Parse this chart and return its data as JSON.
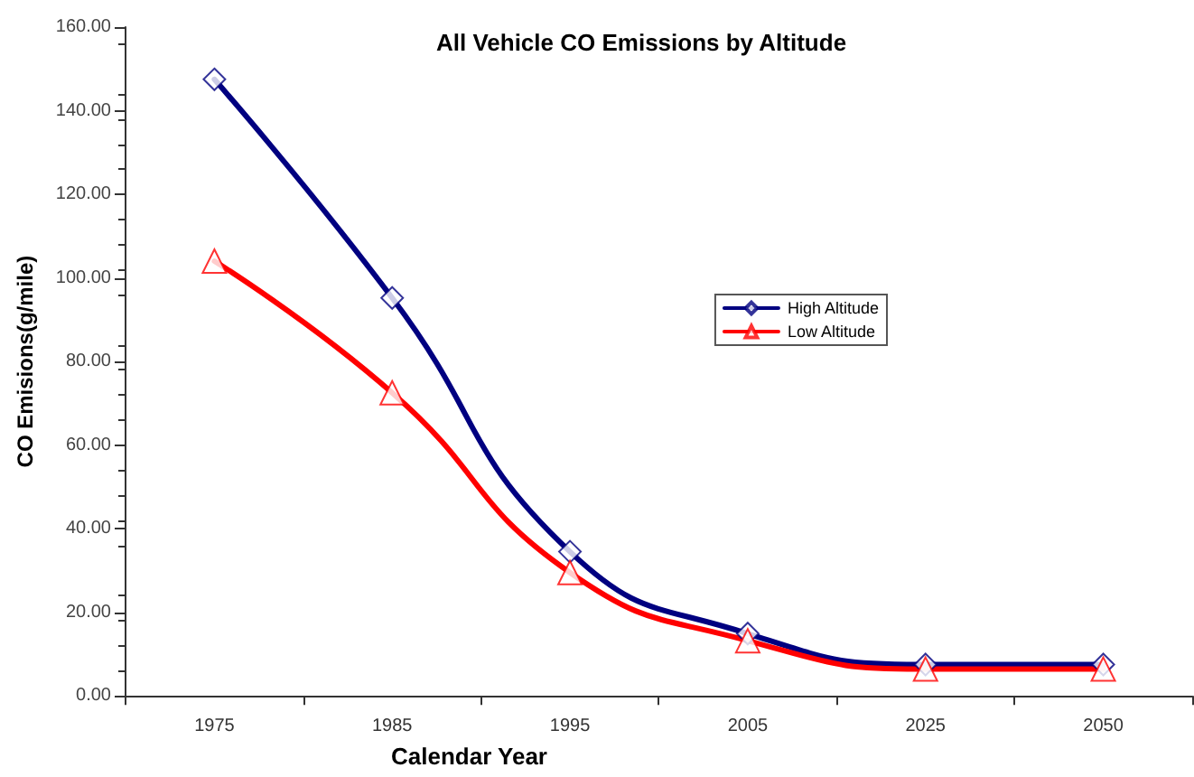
{
  "chart_data": {
    "type": "line",
    "title": "All Vehicle CO Emissions by Altitude",
    "xlabel": "Calendar Year",
    "ylabel": "CO Emisions(g/mile)",
    "categories": [
      "1975",
      "1985",
      "1995",
      "2005",
      "2025",
      "2050"
    ],
    "series": [
      {
        "name": "High Altitude",
        "color": "#000080",
        "marker": "diamond",
        "values": [
          147.5,
          95.2,
          34.5,
          14.9,
          7.5,
          7.5
        ]
      },
      {
        "name": "Low Altitude",
        "color": "#ff0000",
        "marker": "triangle",
        "values": [
          104,
          72.5,
          29.5,
          13.2,
          6.4,
          6.4
        ]
      }
    ],
    "ylim": [
      0,
      160
    ],
    "yticks": [
      {
        "value": 0,
        "label": "0.00"
      },
      {
        "value": 20,
        "label": "20.00"
      },
      {
        "value": 40,
        "label": "40.00"
      },
      {
        "value": 60,
        "label": "60.00"
      },
      {
        "value": 80,
        "label": "80.00"
      },
      {
        "value": 100,
        "label": "100.00"
      },
      {
        "value": 120,
        "label": "120.00"
      },
      {
        "value": 140,
        "label": "140.00"
      },
      {
        "value": 160,
        "label": "160.00"
      }
    ],
    "grid": false,
    "legend": "right",
    "line_style": "solid"
  }
}
